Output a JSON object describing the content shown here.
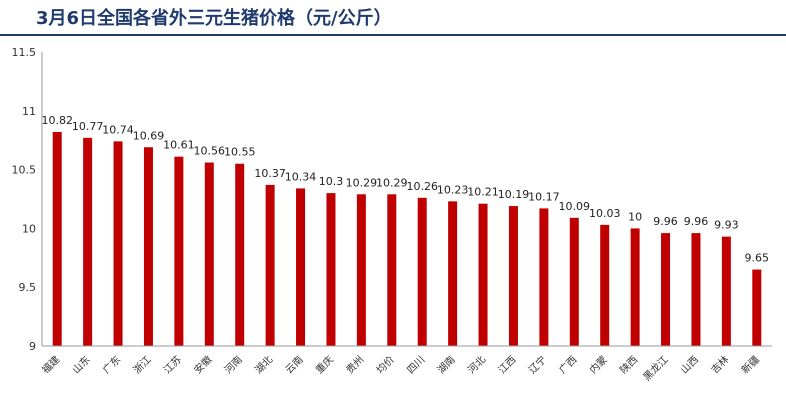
{
  "header": {
    "title": "3月6日全国各省外三元生猪价格（元/公斤）"
  },
  "colors": {
    "bar": "#c00000",
    "title": "#1f3a6e",
    "axis": "#999999"
  },
  "chart_data": {
    "type": "bar",
    "title": "3月6日全国各省外三元生猪价格（元/公斤）",
    "categories": [
      "福建",
      "山东",
      "广东",
      "浙江",
      "江苏",
      "安徽",
      "河南",
      "湖北",
      "云南",
      "重庆",
      "贵州",
      "均价",
      "四川",
      "湖南",
      "河北",
      "江西",
      "辽宁",
      "广西",
      "内蒙",
      "陕西",
      "黑龙江",
      "山西",
      "吉林",
      "新疆"
    ],
    "values": [
      10.82,
      10.77,
      10.74,
      10.69,
      10.61,
      10.56,
      10.55,
      10.37,
      10.34,
      10.3,
      10.29,
      10.29,
      10.26,
      10.23,
      10.21,
      10.19,
      10.17,
      10.09,
      10.03,
      10,
      9.96,
      9.96,
      9.93,
      9.65
    ],
    "value_labels": [
      "10.82",
      "10.77",
      "10.74",
      "10.69",
      "10.61",
      "10.56",
      "10.55",
      "10.37",
      "10.34",
      "10.3",
      "10.29",
      "10.29",
      "10.26",
      "10.23",
      "10.21",
      "10.19",
      "10.17",
      "10.09",
      "10.03",
      "10",
      "9.96",
      "9.96",
      "9.93",
      "9.65"
    ],
    "ylim": [
      9,
      11.5
    ],
    "yticks": [
      "9",
      "9.5",
      "10",
      "10.5",
      "11",
      "11.5"
    ],
    "xlabel": "",
    "ylabel": "",
    "grid": false,
    "legend": "none"
  }
}
